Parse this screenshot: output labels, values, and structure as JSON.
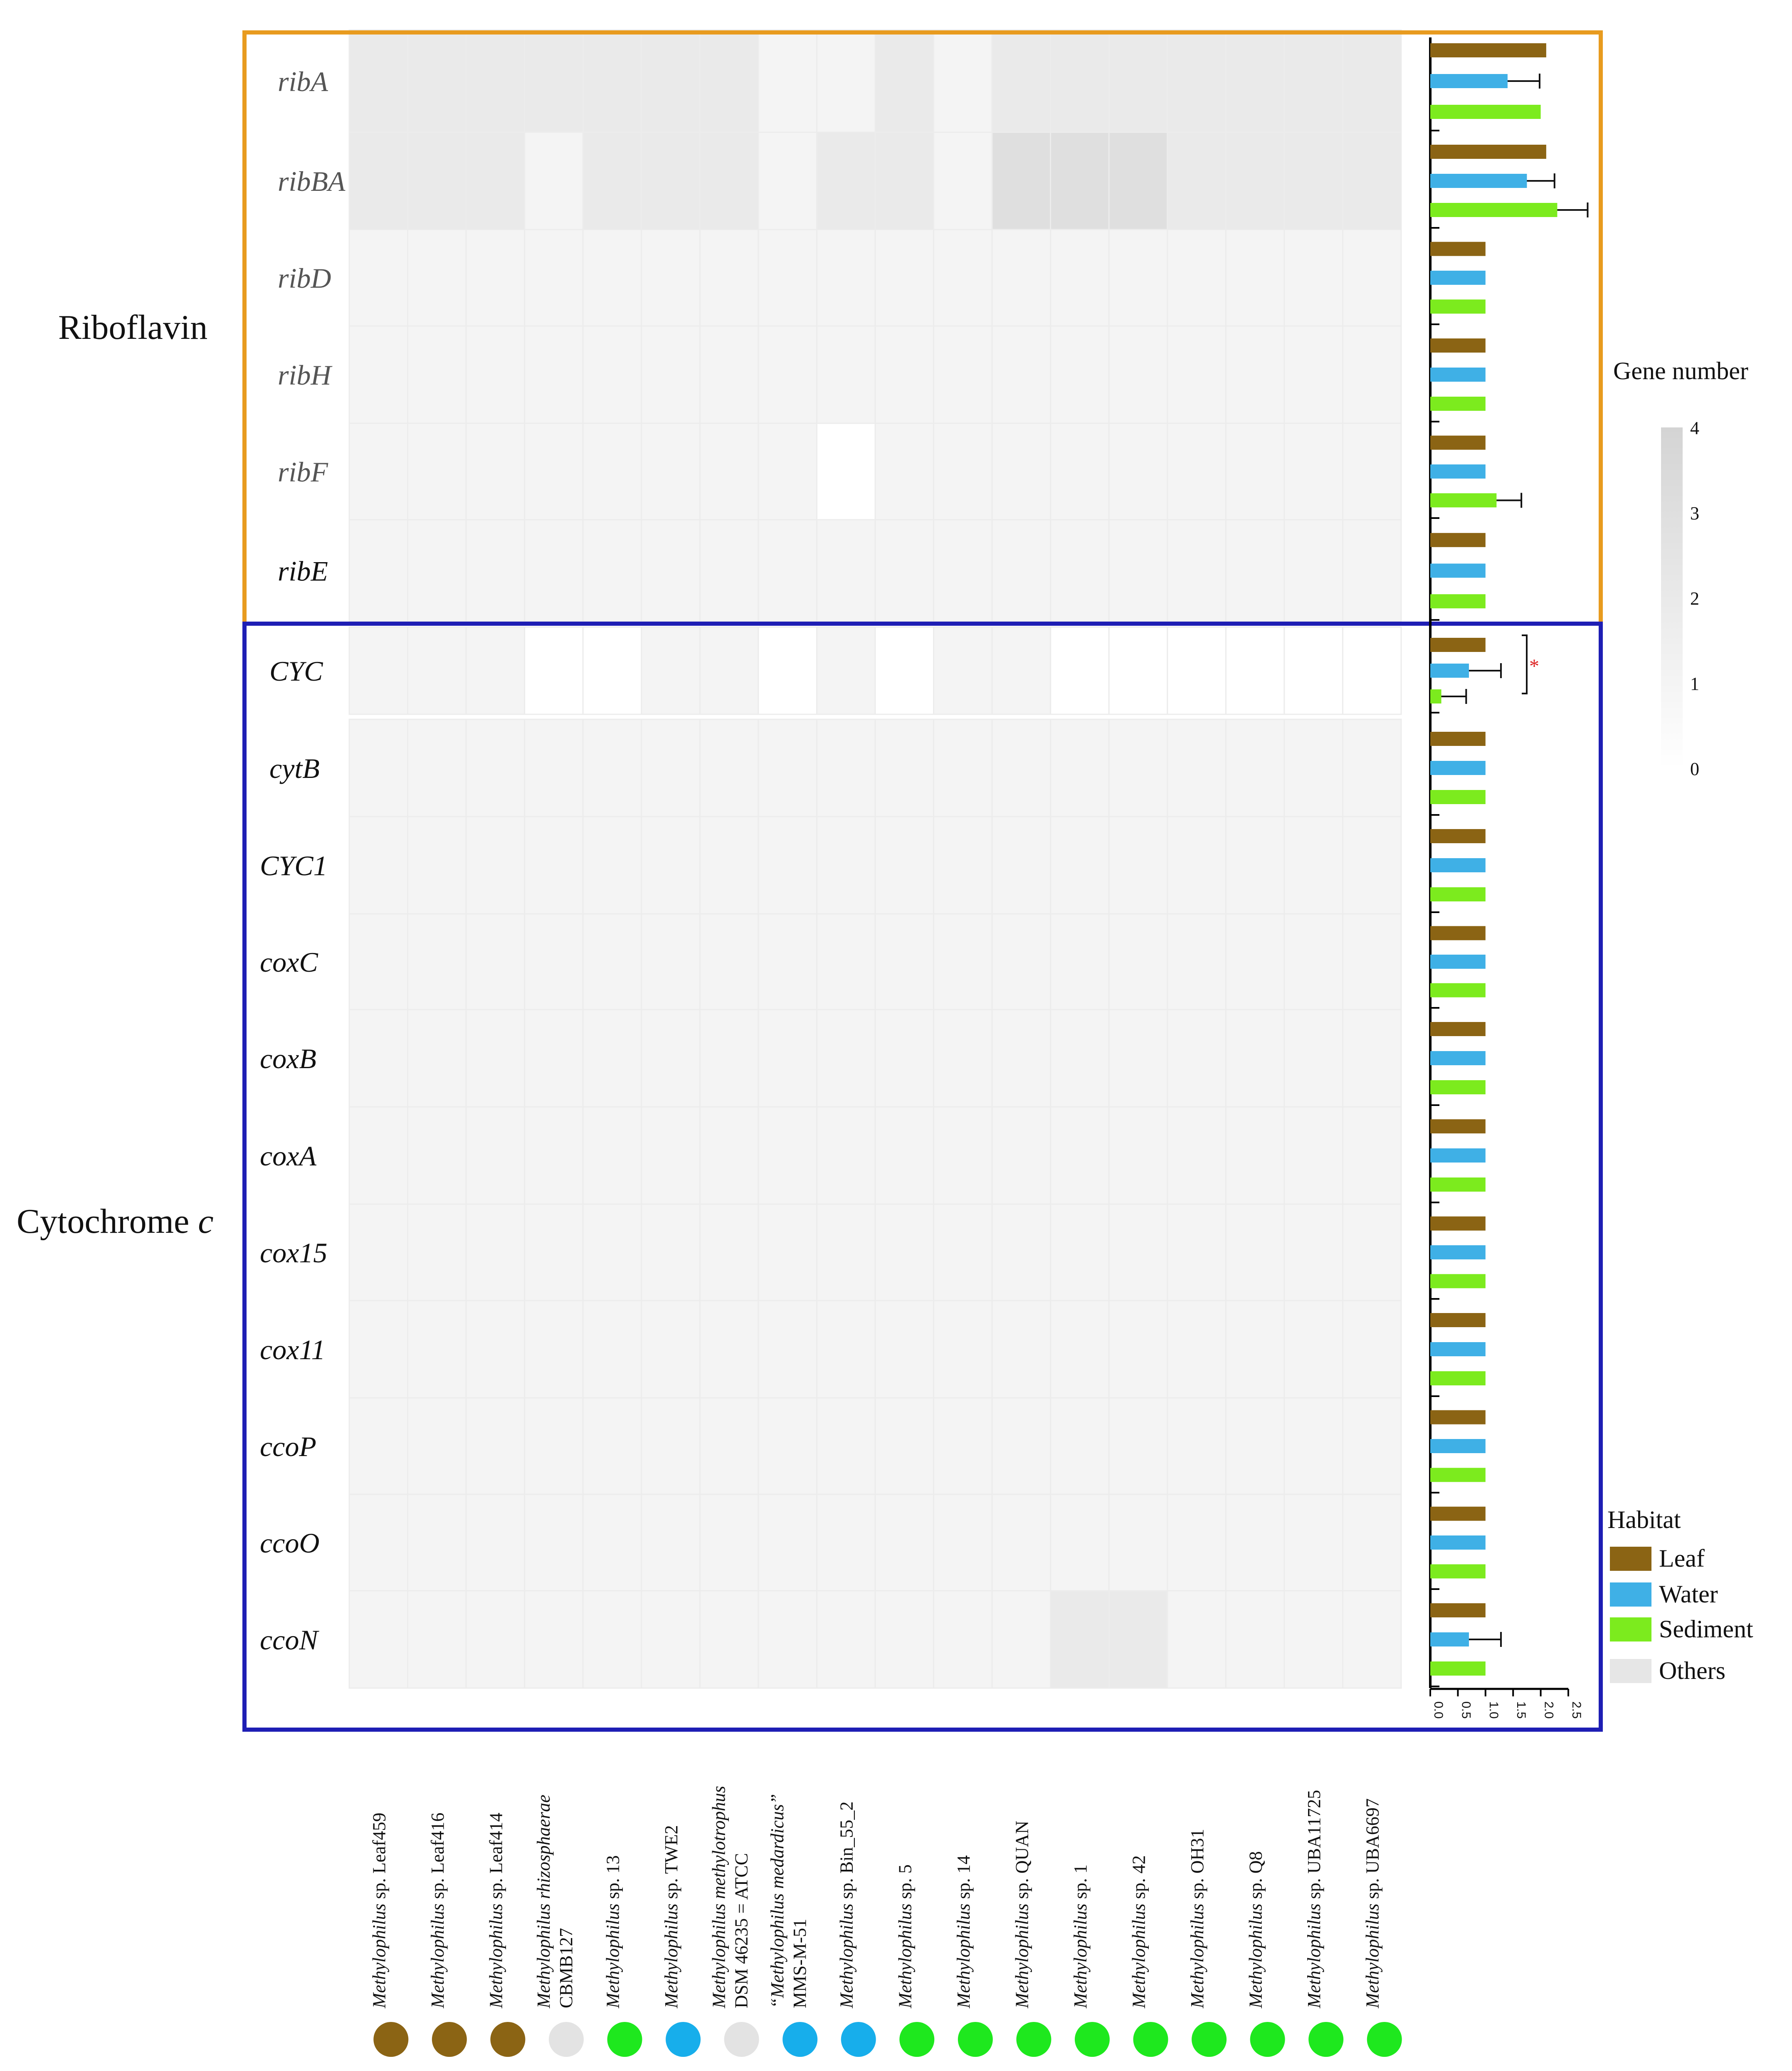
{
  "chart_data": {
    "type": "heatmap",
    "title": "",
    "group_labels": {
      "riboflavin": "Riboflavin",
      "cytochrome_prefix": "Cytochrome",
      "cytochrome_suffix": "c"
    },
    "genes": [
      "ribA",
      "ribBA",
      "ribD",
      "ribH",
      "ribF",
      "ribE",
      "CYC",
      "cytB",
      "CYC1",
      "coxC",
      "coxB",
      "coxA",
      "cox15",
      "cox11",
      "ccoP",
      "ccoO",
      "ccoN"
    ],
    "groups": [
      {
        "name": "Riboflavin",
        "genes": [
          "ribA",
          "ribBA",
          "ribD",
          "ribH",
          "ribF",
          "ribE"
        ],
        "color": "#E89B1F"
      },
      {
        "name": "Cytochrome c",
        "genes": [
          "CYC",
          "cytB",
          "CYC1",
          "coxC",
          "coxB",
          "coxA",
          "cox15",
          "cox11",
          "ccoP",
          "ccoO",
          "ccoN"
        ],
        "color": "#1E1EB4"
      }
    ],
    "strains": [
      {
        "genus": "Methylophilus",
        "rest": " sp. Leaf459",
        "habitat": "Leaf"
      },
      {
        "genus": "Methylophilus",
        "rest": " sp. Leaf416",
        "habitat": "Leaf"
      },
      {
        "genus": "Methylophilus",
        "rest": " sp. Leaf414",
        "habitat": "Leaf"
      },
      {
        "genus": "Methylophilus rhizosphaerae",
        "rest": "",
        "line2": "CBMB127",
        "habitat": "Others"
      },
      {
        "genus": "Methylophilus",
        "rest": " sp. 13",
        "habitat": "Sediment"
      },
      {
        "genus": "Methylophilus",
        "rest": " sp. TWE2",
        "habitat": "Water"
      },
      {
        "genus": "Methylophilus methylotrophus",
        "rest": "",
        "line2": "DSM 46235 = ATCC",
        "habitat": "Others"
      },
      {
        "genus": "“Methylophilus medardicus”",
        "rest": "",
        "line2": "MMS-M-51",
        "habitat": "Water"
      },
      {
        "genus": "Methylophilus",
        "rest": " sp. Bin_55_2",
        "habitat": "Water"
      },
      {
        "genus": "Methylophilus",
        "rest": " sp. 5",
        "habitat": "Sediment"
      },
      {
        "genus": "Methylophilus",
        "rest": " sp. 14",
        "habitat": "Sediment"
      },
      {
        "genus": "Methylophilus",
        "rest": " sp. QUAN",
        "habitat": "Sediment"
      },
      {
        "genus": "Methylophilus",
        "rest": " sp. 1",
        "habitat": "Sediment"
      },
      {
        "genus": "Methylophilus",
        "rest": " sp. 42",
        "habitat": "Sediment"
      },
      {
        "genus": "Methylophilus",
        "rest": " sp. OH31",
        "habitat": "Sediment"
      },
      {
        "genus": "Methylophilus",
        "rest": " sp. Q8",
        "habitat": "Sediment"
      },
      {
        "genus": "Methylophilus",
        "rest": " sp. UBA11725",
        "habitat": "Sediment"
      },
      {
        "genus": "Methylophilus",
        "rest": " sp. UBA6697",
        "habitat": "Sediment"
      }
    ],
    "matrix": [
      [
        2,
        2,
        2,
        2,
        2,
        2,
        2,
        1,
        1,
        2,
        1,
        2,
        2,
        2,
        2,
        2,
        2,
        2
      ],
      [
        2,
        2,
        2,
        1,
        2,
        2,
        2,
        1,
        2,
        2,
        1,
        3,
        3,
        3,
        2,
        2,
        2,
        2
      ],
      [
        1,
        1,
        1,
        1,
        1,
        1,
        1,
        1,
        1,
        1,
        1,
        1,
        1,
        1,
        1,
        1,
        1,
        1
      ],
      [
        1,
        1,
        1,
        1,
        1,
        1,
        1,
        1,
        1,
        1,
        1,
        1,
        1,
        1,
        1,
        1,
        1,
        1
      ],
      [
        1,
        1,
        1,
        1,
        1,
        1,
        1,
        1,
        0,
        1,
        1,
        1,
        1,
        1,
        1,
        1,
        1,
        1
      ],
      [
        1,
        1,
        1,
        1,
        1,
        1,
        1,
        1,
        1,
        1,
        1,
        1,
        1,
        1,
        1,
        1,
        1,
        1
      ],
      [
        1,
        1,
        1,
        0,
        0,
        1,
        1,
        0,
        1,
        0,
        1,
        1,
        0,
        0,
        0,
        0,
        0,
        0
      ],
      [
        1,
        1,
        1,
        1,
        1,
        1,
        1,
        1,
        1,
        1,
        1,
        1,
        1,
        1,
        1,
        1,
        1,
        1
      ],
      [
        1,
        1,
        1,
        1,
        1,
        1,
        1,
        1,
        1,
        1,
        1,
        1,
        1,
        1,
        1,
        1,
        1,
        1
      ],
      [
        1,
        1,
        1,
        1,
        1,
        1,
        1,
        1,
        1,
        1,
        1,
        1,
        1,
        1,
        1,
        1,
        1,
        1
      ],
      [
        1,
        1,
        1,
        1,
        1,
        1,
        1,
        1,
        1,
        1,
        1,
        1,
        1,
        1,
        1,
        1,
        1,
        1
      ],
      [
        1,
        1,
        1,
        1,
        1,
        1,
        1,
        1,
        1,
        1,
        1,
        1,
        1,
        1,
        1,
        1,
        1,
        1
      ],
      [
        1,
        1,
        1,
        1,
        1,
        1,
        1,
        1,
        1,
        1,
        1,
        1,
        1,
        1,
        1,
        1,
        1,
        1
      ],
      [
        1,
        1,
        1,
        1,
        1,
        1,
        1,
        1,
        1,
        1,
        1,
        1,
        1,
        1,
        1,
        1,
        1,
        1
      ],
      [
        1,
        1,
        1,
        1,
        1,
        1,
        1,
        1,
        1,
        1,
        1,
        1,
        1,
        1,
        1,
        1,
        1,
        1
      ],
      [
        1,
        1,
        1,
        1,
        1,
        1,
        1,
        1,
        1,
        1,
        1,
        1,
        1,
        1,
        1,
        1,
        1,
        1
      ],
      [
        1,
        1,
        1,
        1,
        1,
        1,
        1,
        1,
        1,
        1,
        1,
        1,
        2,
        2,
        1,
        1,
        1,
        1
      ]
    ],
    "colorbar": {
      "title": "Gene number",
      "min": 0,
      "max": 4,
      "ticks": [
        "0",
        "1",
        "2",
        "3",
        "4"
      ],
      "color_low": "#ffffff",
      "color_high": "#d4d4d4"
    },
    "bar_panel": {
      "type": "bar",
      "orientation": "horizontal",
      "series": [
        "Leaf",
        "Water",
        "Sediment"
      ],
      "xlim": [
        0,
        2.5
      ],
      "xticks": [
        "0.0",
        "0.5",
        "1.0",
        "1.5",
        "2.0",
        "2.5"
      ],
      "values": [
        [
          2.1,
          1.4,
          2.0
        ],
        [
          2.1,
          1.75,
          2.3
        ],
        [
          1.0,
          1.0,
          1.0
        ],
        [
          1.0,
          1.0,
          1.0
        ],
        [
          1.0,
          1.0,
          1.2
        ],
        [
          1.0,
          1.0,
          1.0
        ],
        [
          1.0,
          0.7,
          0.2
        ],
        [
          1.0,
          1.0,
          1.0
        ],
        [
          1.0,
          1.0,
          1.0
        ],
        [
          1.0,
          1.0,
          1.0
        ],
        [
          1.0,
          1.0,
          1.0
        ],
        [
          1.0,
          1.0,
          1.0
        ],
        [
          1.0,
          1.0,
          1.0
        ],
        [
          1.0,
          1.0,
          1.0
        ],
        [
          1.0,
          1.0,
          1.0
        ],
        [
          1.0,
          1.0,
          1.0
        ],
        [
          1.0,
          0.7,
          1.0
        ]
      ],
      "errors": [
        [
          0,
          0.58,
          0
        ],
        [
          0,
          0.5,
          0.55
        ],
        [
          0,
          0,
          0
        ],
        [
          0,
          0,
          0
        ],
        [
          0,
          0,
          0.45
        ],
        [
          0,
          0,
          0
        ],
        [
          0,
          0.58,
          0.45
        ],
        [
          0,
          0,
          0
        ],
        [
          0,
          0,
          0
        ],
        [
          0,
          0,
          0
        ],
        [
          0,
          0,
          0
        ],
        [
          0,
          0,
          0
        ],
        [
          0,
          0,
          0
        ],
        [
          0,
          0,
          0
        ],
        [
          0,
          0,
          0
        ],
        [
          0,
          0,
          0
        ],
        [
          0,
          0.58,
          0
        ]
      ],
      "significance": {
        "gene": "CYC",
        "marker": "*"
      }
    },
    "legend": {
      "title": "Habitat",
      "entries": [
        {
          "label": "Leaf",
          "color": "#8B6414"
        },
        {
          "label": "Water",
          "color": "#3FB0E6"
        },
        {
          "label": "Sediment",
          "color": "#7CEB1E"
        },
        {
          "label": "Others",
          "color": "#E6E6E6"
        }
      ]
    },
    "dot_colors": {
      "Leaf": "#8B6414",
      "Water": "#17AEEB",
      "Sediment": "#1EE81E",
      "Others": "#E3E3E3"
    }
  }
}
